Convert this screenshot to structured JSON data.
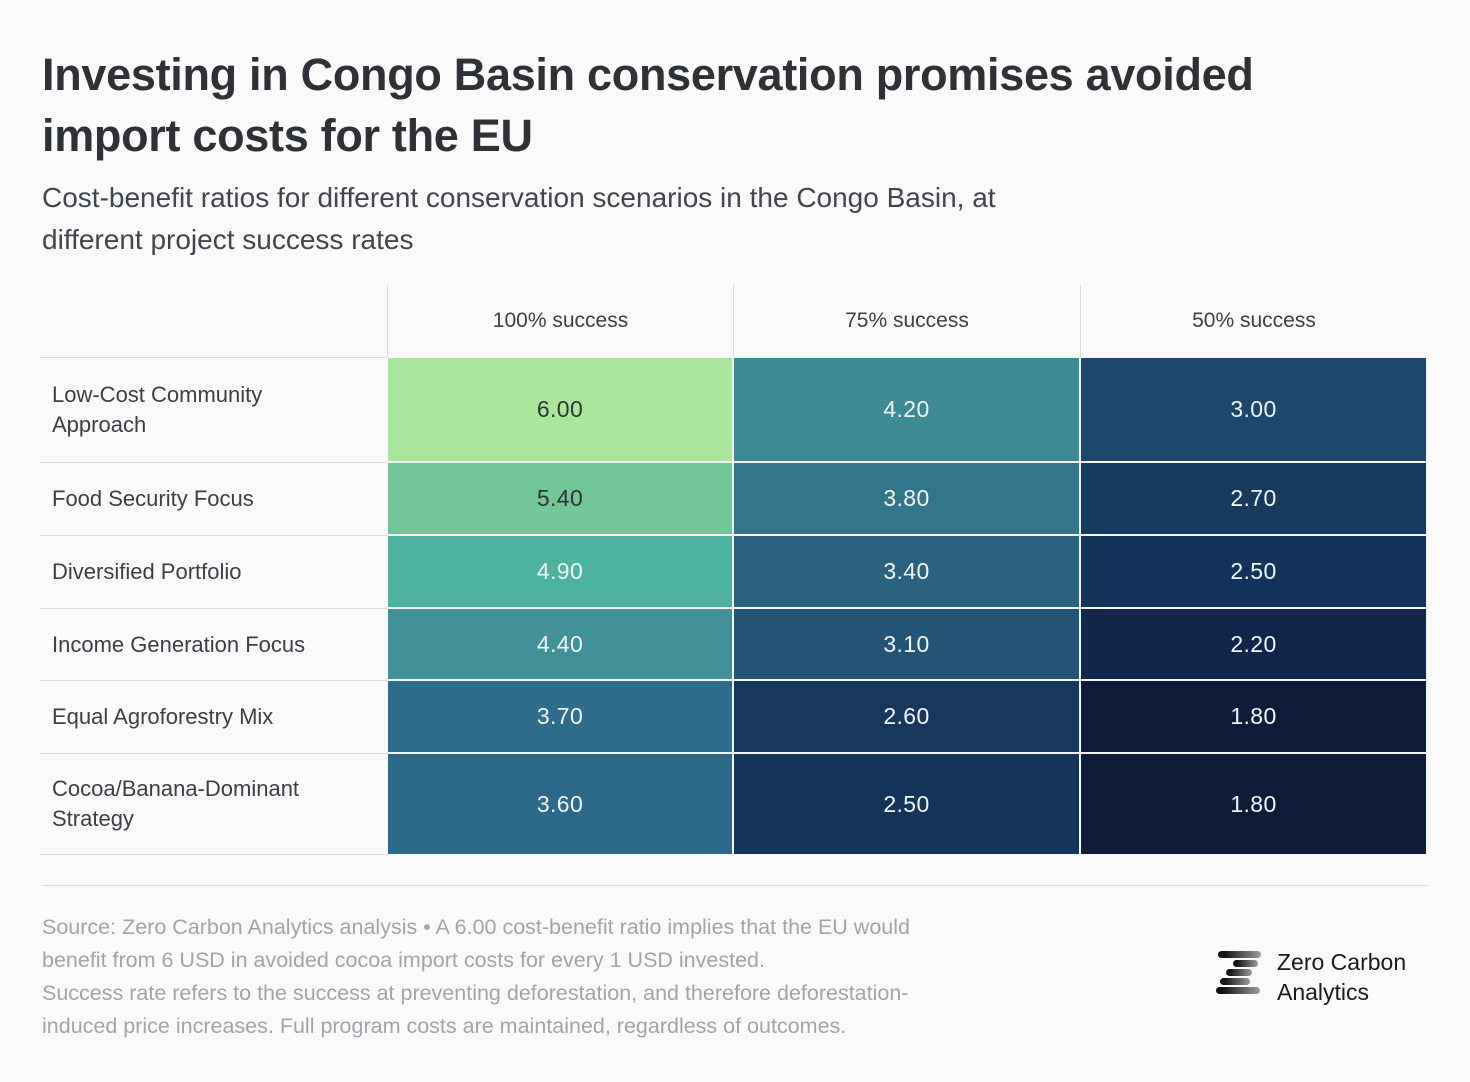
{
  "title": {
    "lines": [
      "Investing in Congo Basin conservation promises avoided",
      "import costs for the EU"
    ]
  },
  "subtitle": {
    "lines": [
      "Cost-benefit ratios for different conservation scenarios in the Congo Basin, at",
      "different project success rates"
    ]
  },
  "table": {
    "columns": [
      "100% success",
      "75% success",
      "50% success"
    ],
    "rows": [
      {
        "label": "Low-Cost Community Approach",
        "cells": [
          {
            "value": "6.00",
            "bg": "#a9e69b",
            "fg": "#2f3337"
          },
          {
            "value": "4.20",
            "bg": "#3d8a94",
            "fg": "#f4f6f6"
          },
          {
            "value": "3.00",
            "bg": "#1e476e",
            "fg": "#f4f6f6"
          }
        ]
      },
      {
        "label": "Food Security Focus",
        "cells": [
          {
            "value": "5.40",
            "bg": "#72c698",
            "fg": "#2f3337"
          },
          {
            "value": "3.80",
            "bg": "#337589",
            "fg": "#f4f6f6"
          },
          {
            "value": "2.70",
            "bg": "#173a5f",
            "fg": "#f4f6f6"
          }
        ]
      },
      {
        "label": "Diversified Portfolio",
        "cells": [
          {
            "value": "4.90",
            "bg": "#4db3a0",
            "fg": "#f4f6f6"
          },
          {
            "value": "3.40",
            "bg": "#2a6280",
            "fg": "#f4f6f6"
          },
          {
            "value": "2.50",
            "bg": "#14335a",
            "fg": "#f4f6f6"
          }
        ]
      },
      {
        "label": "Income Generation Focus",
        "cells": [
          {
            "value": "4.40",
            "bg": "#429199",
            "fg": "#f4f6f6"
          },
          {
            "value": "3.10",
            "bg": "#245577",
            "fg": "#f4f6f6"
          },
          {
            "value": "2.20",
            "bg": "#12254a",
            "fg": "#f4f6f6"
          }
        ]
      },
      {
        "label": "Equal Agroforestry Mix",
        "cells": [
          {
            "value": "3.70",
            "bg": "#2e6e8c",
            "fg": "#f4f6f6"
          },
          {
            "value": "2.60",
            "bg": "#17375c",
            "fg": "#f4f6f6"
          },
          {
            "value": "1.80",
            "bg": "#0e1c3a",
            "fg": "#f4f6f6"
          }
        ]
      },
      {
        "label": "Cocoa/Banana-Dominant Strategy",
        "cells": [
          {
            "value": "3.60",
            "bg": "#2d6a89",
            "fg": "#f4f6f6"
          },
          {
            "value": "2.50",
            "bg": "#15345a",
            "fg": "#f4f6f6"
          },
          {
            "value": "1.80",
            "bg": "#0e1c3a",
            "fg": "#f4f6f6"
          }
        ]
      }
    ]
  },
  "footer": {
    "lines": [
      "Source: Zero Carbon Analytics analysis • A 6.00 cost-benefit ratio implies that the EU would",
      "benefit from 6 USD in avoided cocoa import costs for every 1 USD invested.",
      "Success rate refers to the success at preventing deforestation, and therefore deforestation-",
      "induced price increases. Full program costs are maintained, regardless of outcomes."
    ]
  },
  "logo": {
    "name": "Zero Carbon Analytics",
    "lines": [
      "Zero Carbon",
      "Analytics"
    ]
  },
  "chart_data": {
    "type": "heatmap",
    "title": "Investing in Congo Basin conservation promises avoided import costs for the EU",
    "subtitle": "Cost-benefit ratios for different conservation scenarios in the Congo Basin, at different project success rates",
    "columns": [
      "100% success",
      "75% success",
      "50% success"
    ],
    "rows": [
      "Low-Cost Community Approach",
      "Food Security Focus",
      "Diversified Portfolio",
      "Income Generation Focus",
      "Equal Agroforestry Mix",
      "Cocoa/Banana-Dominant Strategy"
    ],
    "values": [
      [
        6.0,
        4.2,
        3.0
      ],
      [
        5.4,
        3.8,
        2.7
      ],
      [
        4.9,
        3.4,
        2.5
      ],
      [
        4.4,
        3.1,
        2.2
      ],
      [
        3.7,
        2.6,
        1.8
      ],
      [
        3.6,
        2.5,
        1.8
      ]
    ],
    "value_scale": {
      "min": 1.8,
      "max": 6.0,
      "low_color": "#0e1c3a",
      "high_color": "#a9e69b"
    },
    "legend_position": "none",
    "grid": false
  }
}
